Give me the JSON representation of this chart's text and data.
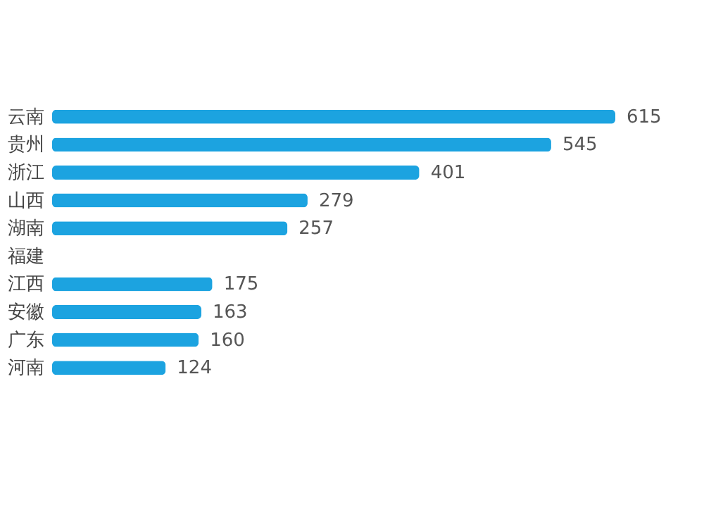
{
  "chart_data": {
    "type": "bar",
    "orientation": "horizontal",
    "categories": [
      "云南",
      "贵州",
      "浙江",
      "山西",
      "湖南",
      "福建",
      "江西",
      "安徽",
      "广东",
      "河南"
    ],
    "values": [
      615,
      545,
      401,
      279,
      257,
      null,
      175,
      163,
      160,
      124
    ],
    "color": "#1ca3e0",
    "data_labels": true,
    "grid": false
  }
}
